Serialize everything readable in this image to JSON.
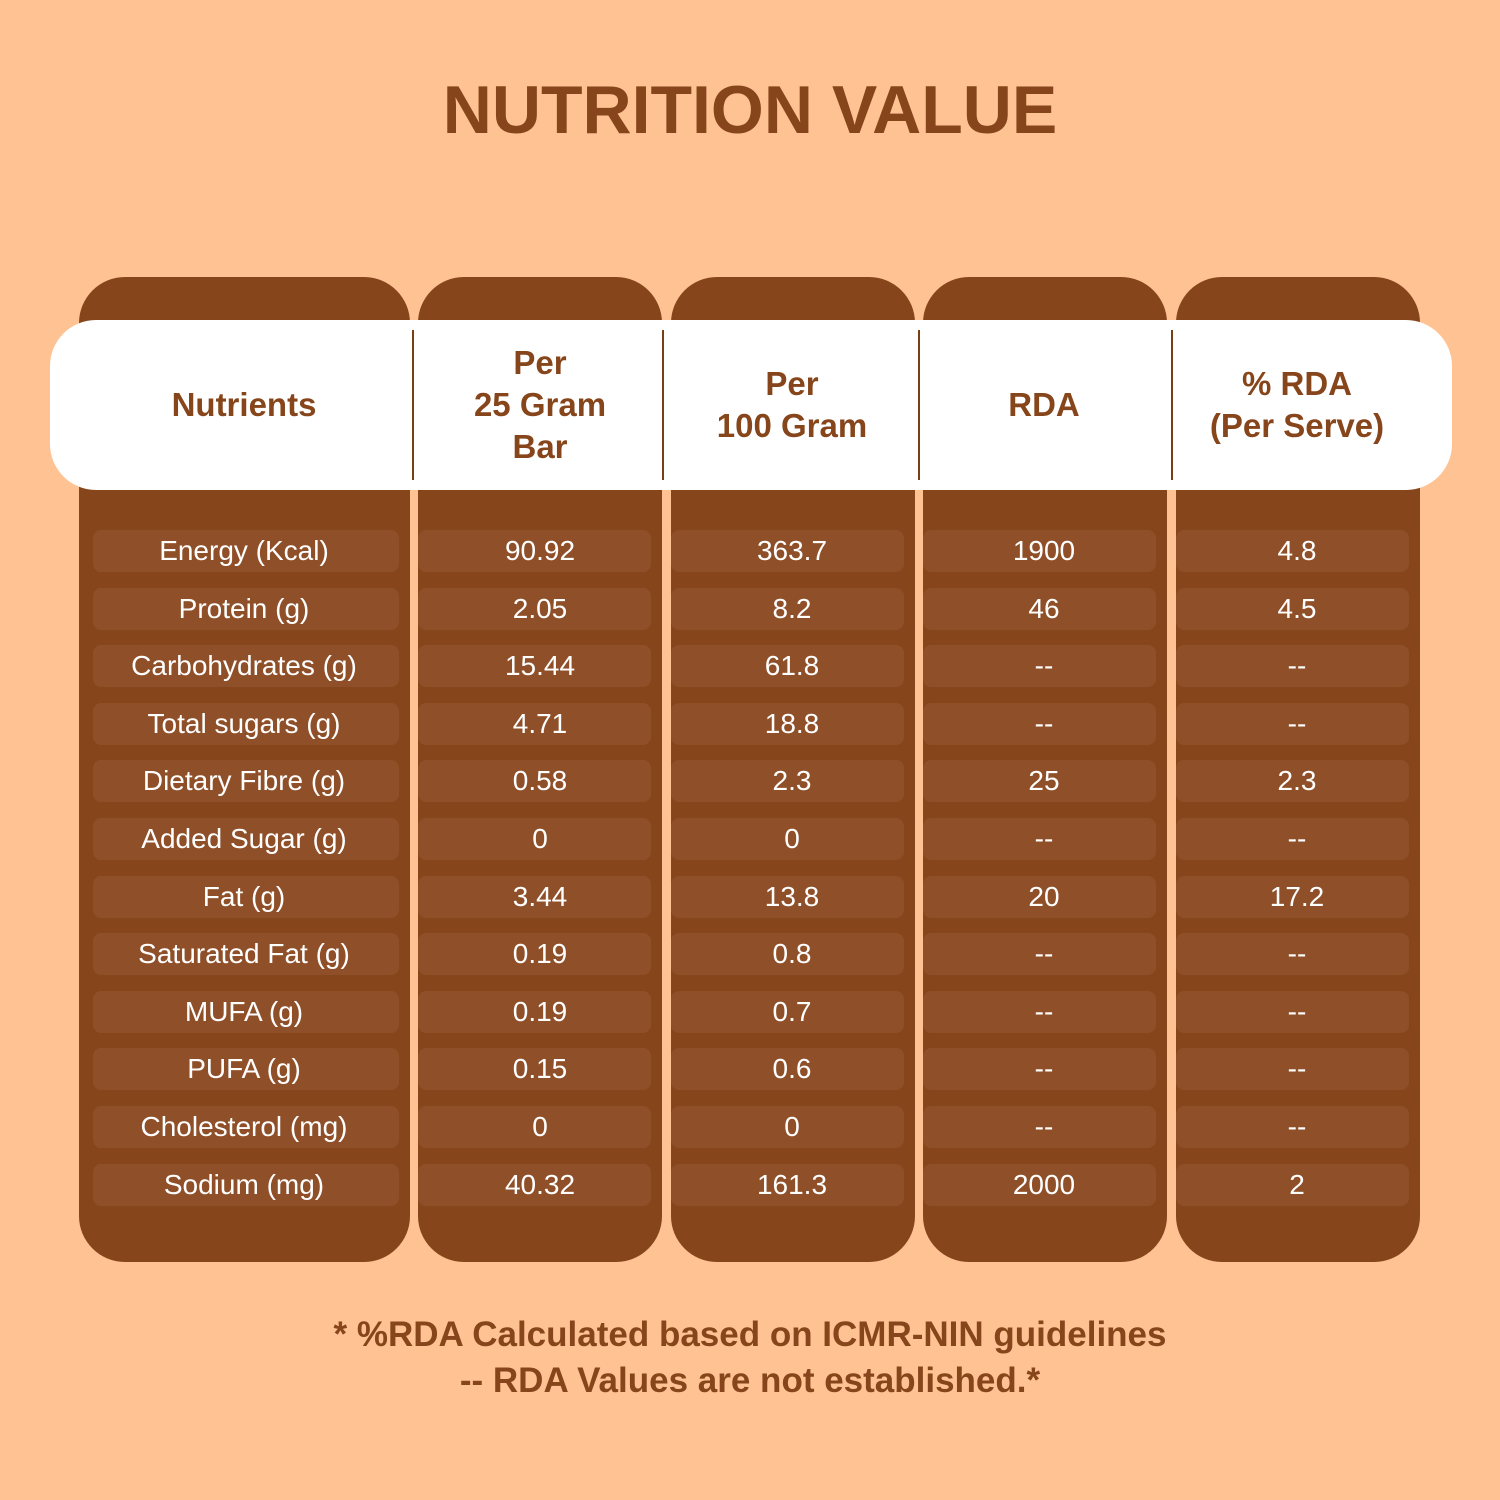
{
  "title": "NUTRITION VALUE",
  "colors": {
    "background": "#FFC292",
    "column": "#86451A",
    "row_band": "#8F5029",
    "header_band": "#FFFFFF",
    "text_brown": "#86451A"
  },
  "chart_data": {
    "type": "table",
    "columns": [
      "Nutrients",
      "Per\n25 Gram\nBar",
      "Per\n100 Gram",
      "RDA",
      "% RDA\n(Per Serve)"
    ],
    "rows": [
      [
        "Energy (Kcal)",
        "90.92",
        "363.7",
        "1900",
        "4.8"
      ],
      [
        "Protein (g)",
        "2.05",
        "8.2",
        "46",
        "4.5"
      ],
      [
        "Carbohydrates (g)",
        "15.44",
        "61.8",
        "--",
        "--"
      ],
      [
        "Total sugars (g)",
        "4.71",
        "18.8",
        "--",
        "--"
      ],
      [
        "Dietary Fibre (g)",
        "0.58",
        "2.3",
        "25",
        "2.3"
      ],
      [
        "Added Sugar (g)",
        "0",
        "0",
        "--",
        "--"
      ],
      [
        "Fat (g)",
        "3.44",
        "13.8",
        "20",
        "17.2"
      ],
      [
        "Saturated Fat (g)",
        "0.19",
        "0.8",
        "--",
        "--"
      ],
      [
        "MUFA (g)",
        "0.19",
        "0.7",
        "--",
        "--"
      ],
      [
        "PUFA (g)",
        "0.15",
        "0.6",
        "--",
        "--"
      ],
      [
        "Cholesterol (mg)",
        "0",
        "0",
        "--",
        "--"
      ],
      [
        "Sodium (mg)",
        "40.32",
        "161.3",
        "2000",
        "2"
      ]
    ]
  },
  "footnotes": [
    "* %RDA Calculated based on ICMR-NIN guidelines",
    "-- RDA Values are not established.*"
  ]
}
